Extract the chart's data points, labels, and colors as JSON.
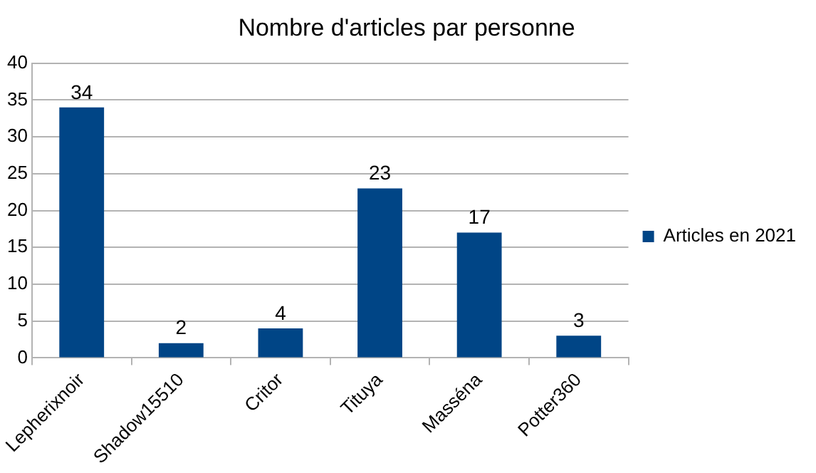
{
  "chart_data": {
    "type": "bar",
    "title": "Nombre d'articles par personne",
    "categories": [
      "Lepherixnoir",
      "Shadow15510",
      "Critor",
      "Tituya",
      "Masséna",
      "Potter360"
    ],
    "series": [
      {
        "name": "Articles en 2021",
        "color": "#004586",
        "values": [
          34,
          2,
          4,
          23,
          17,
          3
        ]
      }
    ],
    "ylim": [
      0,
      40
    ],
    "yticks": [
      0,
      5,
      10,
      15,
      20,
      25,
      30,
      35,
      40
    ],
    "grid": "y",
    "legend": "right",
    "data_labels": true
  }
}
